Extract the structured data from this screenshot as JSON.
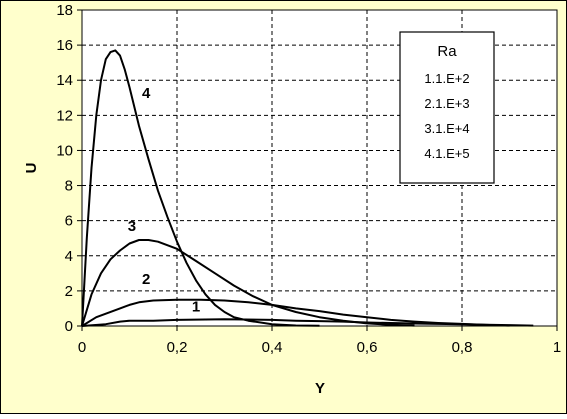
{
  "chart_data": {
    "type": "line",
    "xlabel": "Y",
    "ylabel": "U",
    "xlim": [
      0,
      1
    ],
    "ylim": [
      0,
      18
    ],
    "xticks": [
      0,
      0.2,
      0.4,
      0.6,
      0.8,
      1
    ],
    "xtick_labels": [
      "0",
      "0,2",
      "0,4",
      "0,6",
      "0,8",
      "1"
    ],
    "yticks": [
      0,
      2,
      4,
      6,
      8,
      10,
      12,
      14,
      16,
      18
    ],
    "ytick_labels": [
      "0",
      "2",
      "4",
      "6",
      "8",
      "10",
      "12",
      "14",
      "16",
      "18"
    ],
    "grid": true,
    "legend": {
      "title": "Ra",
      "placement": "top-right",
      "entries": [
        "1.1.E+2",
        "2.1.E+3",
        "3.1.E+4",
        "4.1.E+5"
      ]
    },
    "series": [
      {
        "label": "1",
        "label_at": [
          0.24,
          0.82
        ],
        "x": [
          0,
          0.05,
          0.08,
          0.1,
          0.15,
          0.2,
          0.3,
          0.4,
          0.45,
          0.5,
          0.55,
          0.6,
          0.65,
          0.7,
          0.75,
          0.8,
          0.85,
          0.9,
          0.95
        ],
        "y": [
          0,
          0.1,
          0.25,
          0.3,
          0.3,
          0.35,
          0.38,
          0.35,
          0.3,
          0.28,
          0.25,
          0.2,
          0.17,
          0.14,
          0.12,
          0.1,
          0.07,
          0.05,
          0.02
        ]
      },
      {
        "label": "2",
        "label_at": [
          0.135,
          2.4
        ],
        "x": [
          0,
          0.03,
          0.05,
          0.08,
          0.1,
          0.12,
          0.15,
          0.2,
          0.25,
          0.3,
          0.35,
          0.4,
          0.45,
          0.5,
          0.55,
          0.6,
          0.65,
          0.7,
          0.75,
          0.8,
          0.85,
          0.9
        ],
        "y": [
          0,
          0.5,
          0.7,
          1.0,
          1.2,
          1.35,
          1.45,
          1.5,
          1.5,
          1.45,
          1.35,
          1.2,
          1.0,
          0.85,
          0.65,
          0.5,
          0.35,
          0.25,
          0.17,
          0.12,
          0.06,
          0.02
        ]
      },
      {
        "label": "3",
        "label_at": [
          0.105,
          5.4
        ],
        "x": [
          0,
          0.02,
          0.04,
          0.06,
          0.08,
          0.1,
          0.12,
          0.14,
          0.16,
          0.2,
          0.24,
          0.28,
          0.32,
          0.36,
          0.4,
          0.45,
          0.5,
          0.55,
          0.6,
          0.65,
          0.7
        ],
        "y": [
          0,
          1.8,
          3.0,
          3.8,
          4.3,
          4.7,
          4.9,
          4.9,
          4.8,
          4.4,
          3.7,
          3.0,
          2.3,
          1.7,
          1.2,
          0.8,
          0.5,
          0.3,
          0.15,
          0.07,
          0.02
        ]
      },
      {
        "label": "4",
        "label_at": [
          0.135,
          13.0
        ],
        "x": [
          0,
          0.005,
          0.01,
          0.02,
          0.03,
          0.04,
          0.05,
          0.06,
          0.07,
          0.08,
          0.09,
          0.1,
          0.12,
          0.14,
          0.16,
          0.18,
          0.2,
          0.22,
          0.24,
          0.26,
          0.28,
          0.3,
          0.32,
          0.35,
          0.4,
          0.45,
          0.5
        ],
        "y": [
          0,
          2.5,
          5.0,
          9.0,
          12.0,
          14.0,
          15.2,
          15.6,
          15.7,
          15.4,
          14.6,
          13.6,
          11.4,
          9.5,
          7.7,
          6.2,
          4.8,
          3.6,
          2.6,
          1.8,
          1.2,
          0.8,
          0.5,
          0.3,
          0.1,
          0.03,
          0.01
        ]
      }
    ]
  }
}
